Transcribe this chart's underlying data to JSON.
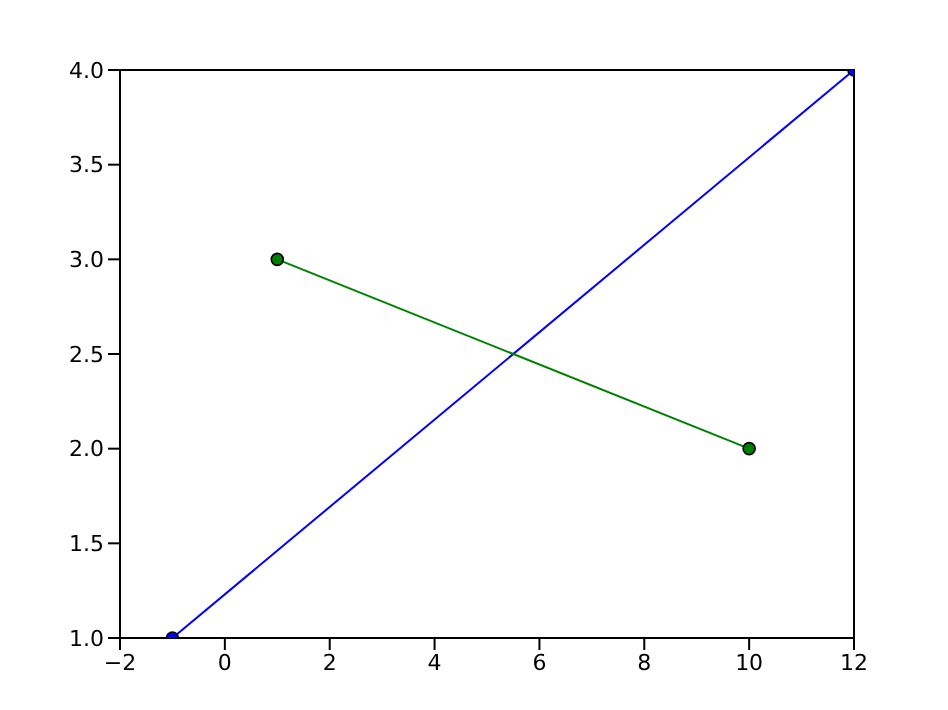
{
  "chart_data": {
    "type": "line",
    "series": [
      {
        "color": "#0000ff",
        "x": [
          -1,
          12
        ],
        "values": [
          1,
          4
        ]
      },
      {
        "color": "#008000",
        "x": [
          1,
          10
        ],
        "values": [
          3,
          2
        ]
      }
    ],
    "xlim": [
      -2,
      12
    ],
    "xticks": [
      {
        "value": -2,
        "label": "−2"
      },
      0,
      2,
      4,
      6,
      8,
      10,
      12
    ],
    "ylim": [
      1,
      4
    ],
    "yticks": [
      {
        "value": 1,
        "label": "1.0"
      },
      {
        "value": 1.5,
        "label": "1.5"
      },
      {
        "value": 2,
        "label": "2.0"
      },
      {
        "value": 2.5,
        "label": "2.5"
      },
      {
        "value": 3,
        "label": "3.0"
      },
      {
        "value": 3.5,
        "label": "3.5"
      },
      {
        "value": 4,
        "label": "4.0"
      }
    ],
    "grid": false,
    "legend": false,
    "marker": "circle",
    "line_style": "solid"
  }
}
